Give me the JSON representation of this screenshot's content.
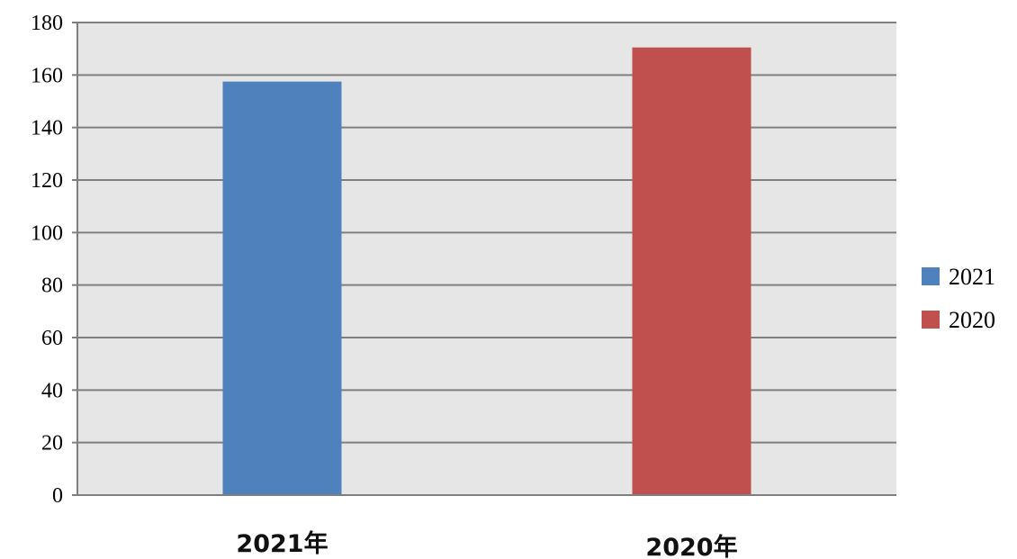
{
  "chart_data": {
    "type": "bar",
    "categories": [
      "2021年",
      "2020年"
    ],
    "values": [
      157.5,
      170.5
    ],
    "bar_colors": [
      "#4f81bd",
      "#c0504d"
    ],
    "ylim": [
      0,
      180
    ],
    "yticks": [
      0,
      20,
      40,
      60,
      80,
      100,
      120,
      140,
      160,
      180
    ],
    "grid": true,
    "plot_background": "#e6e6e6",
    "legend": {
      "placement": "right",
      "entries": [
        {
          "label": "2021",
          "color": "#4f81bd"
        },
        {
          "label": "2020",
          "color": "#c0504d"
        }
      ]
    }
  }
}
